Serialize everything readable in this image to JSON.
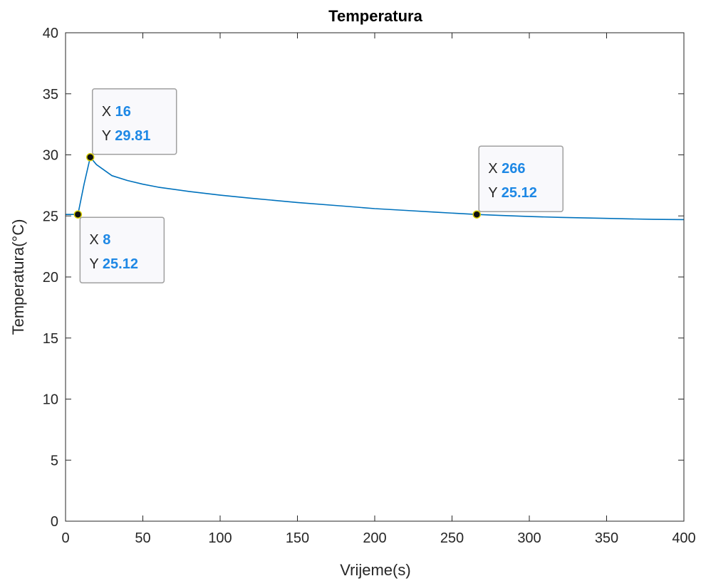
{
  "chart_data": {
    "type": "line",
    "title": "Temperatura",
    "xlabel": "Vrijeme(s)",
    "ylabel": "Temperatura(°C)",
    "xlim": [
      0,
      400
    ],
    "ylim": [
      0,
      40
    ],
    "xticks": [
      "0",
      "50",
      "100",
      "150",
      "200",
      "250",
      "300",
      "350",
      "400"
    ],
    "yticks": [
      "0",
      "5",
      "10",
      "15",
      "20",
      "25",
      "30",
      "35",
      "40"
    ],
    "grid": false,
    "series": [
      {
        "color": "#0072BD",
        "x": [
          0,
          8,
          12,
          16,
          20,
          30,
          40,
          50,
          60,
          80,
          100,
          120,
          150,
          180,
          200,
          220,
          240,
          266,
          280,
          300,
          320,
          350,
          380,
          400
        ],
        "y": [
          25.12,
          25.12,
          27.6,
          29.81,
          29.2,
          28.3,
          27.9,
          27.6,
          27.35,
          27.0,
          26.7,
          26.45,
          26.1,
          25.8,
          25.6,
          25.45,
          25.3,
          25.12,
          25.05,
          24.95,
          24.88,
          24.8,
          24.72,
          24.7
        ]
      }
    ],
    "datatips": [
      {
        "x_key": "X",
        "y_key": "Y",
        "x_value": "8",
        "y_value": "25.12",
        "x": 8,
        "y": 25.12,
        "placement": "below-right"
      },
      {
        "x_key": "X",
        "y_key": "Y",
        "x_value": "16",
        "y_value": "29.81",
        "x": 16,
        "y": 29.81,
        "placement": "above-right"
      },
      {
        "x_key": "X",
        "y_key": "Y",
        "x_value": "266",
        "y_value": "25.12",
        "x": 266,
        "y": 25.12,
        "placement": "above-right"
      }
    ],
    "datatip_value_color": "#1E88E5"
  }
}
